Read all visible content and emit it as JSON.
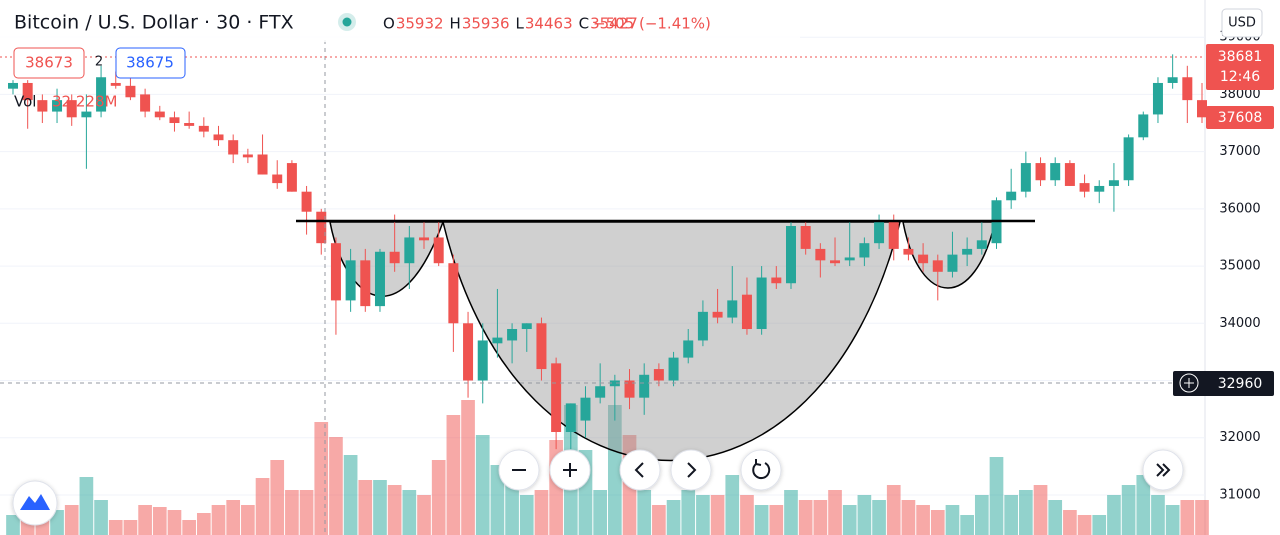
{
  "chart_data": {
    "type": "candlestick",
    "header": {
      "symbol": "Bitcoin / U.S. Dollar · 30 · FTX",
      "ohlc": [
        {
          "label": "O",
          "value": "35932"
        },
        {
          "label": "H",
          "value": "35936"
        },
        {
          "label": "L",
          "value": "34463"
        },
        {
          "label": "C",
          "value": "35427"
        }
      ],
      "change": "−505 (−1.41%)",
      "volume_label": "Vol",
      "volume_value": "32.228M"
    },
    "order_boxes": {
      "sell": "38673",
      "spread": "2",
      "buy": "38675"
    },
    "currency": "USD",
    "price_labels": {
      "last": "38681",
      "countdown": "12:46",
      "high": "37608",
      "crosshair": "32960"
    },
    "up_color": "#26a69a",
    "down_color": "#ef5350",
    "ylim": [
      30300,
      39650
    ],
    "yticks": [
      31000,
      32000,
      33000,
      34000,
      35000,
      36000,
      37000,
      38000,
      39000
    ],
    "open": [
      38100,
      38200,
      37900,
      37700,
      37900,
      37600,
      37700,
      38200,
      38150,
      38000,
      37700,
      37600,
      37500,
      37450,
      37300,
      37200,
      36950,
      36950,
      36600,
      36800,
      36300,
      35950,
      35400,
      34400,
      35100,
      34300,
      35250,
      35050,
      35500,
      35500,
      35050,
      34000,
      33000,
      33650,
      33700,
      33900,
      34000,
      33300,
      32100,
      32300,
      32700,
      32900,
      33000,
      32700,
      33200,
      33000,
      33400,
      33700,
      34200,
      34100,
      34500,
      33900,
      34800,
      34700,
      35700,
      35300,
      35100,
      35100,
      35150,
      35400,
      35800,
      35300,
      35200,
      35100,
      34900,
      35200,
      35300,
      35400,
      36150,
      36300,
      36800,
      36500,
      36800,
      36450,
      36300,
      36400,
      36500,
      37250,
      37650,
      38200,
      38300,
      37900
    ],
    "high": [
      38250,
      38250,
      38000,
      38100,
      38000,
      38000,
      38500,
      38400,
      38300,
      38100,
      37800,
      37700,
      37700,
      37600,
      37450,
      37300,
      37050,
      37300,
      36850,
      36850,
      36400,
      36000,
      35500,
      35300,
      35300,
      35300,
      35900,
      35700,
      35800,
      35800,
      35200,
      34200,
      34000,
      34600,
      34000,
      34000,
      34100,
      33400,
      32600,
      32900,
      33300,
      33100,
      33200,
      33300,
      33300,
      33500,
      33900,
      34400,
      34600,
      35000,
      34800,
      35000,
      35000,
      35800,
      35800,
      35400,
      35500,
      35800,
      35500,
      35900,
      35900,
      35500,
      35400,
      35200,
      35600,
      35500,
      35800,
      36200,
      36700,
      37000,
      36900,
      36900,
      36850,
      36600,
      36500,
      36800,
      37300,
      37700,
      38300,
      38700,
      38500,
      38200
    ],
    "low": [
      38000,
      37400,
      37500,
      37500,
      37450,
      36700,
      37600,
      38100,
      37900,
      37600,
      37550,
      37350,
      37400,
      37250,
      37100,
      36800,
      36800,
      36600,
      36350,
      36300,
      35550,
      35200,
      33800,
      34200,
      34200,
      34200,
      34900,
      34600,
      35300,
      35000,
      33500,
      32700,
      32600,
      33400,
      33300,
      33500,
      33000,
      31800,
      31800,
      32000,
      32600,
      32300,
      32500,
      32400,
      32900,
      32900,
      33300,
      33600,
      34000,
      34000,
      33800,
      33800,
      34600,
      34600,
      35200,
      34800,
      35000,
      35000,
      35000,
      35300,
      35100,
      35100,
      34900,
      34400,
      34800,
      35000,
      35200,
      35300,
      36000,
      36200,
      36400,
      36400,
      36400,
      36200,
      36100,
      35950,
      36400,
      37200,
      37500,
      38100,
      37500,
      37500
    ],
    "close": [
      38200,
      37900,
      37700,
      37900,
      37600,
      37700,
      38300,
      38150,
      37950,
      37700,
      37600,
      37500,
      37450,
      37350,
      37200,
      36950,
      36900,
      36600,
      36450,
      36300,
      35950,
      35400,
      34400,
      35100,
      34300,
      35250,
      35050,
      35500,
      35450,
      35050,
      34000,
      33000,
      33700,
      33750,
      33900,
      34000,
      33200,
      32100,
      32600,
      32700,
      32900,
      33000,
      32700,
      33100,
      33000,
      33400,
      33700,
      34200,
      34100,
      34400,
      33900,
      34800,
      34700,
      35700,
      35300,
      35100,
      35050,
      35150,
      35400,
      35800,
      35300,
      35200,
      35050,
      34900,
      35200,
      35300,
      35450,
      36150,
      36300,
      36800,
      36500,
      36800,
      36400,
      36300,
      36400,
      36500,
      37250,
      37650,
      38200,
      38300,
      37900,
      37600
    ],
    "volume": [
      20,
      15,
      30,
      25,
      30,
      58,
      35,
      15,
      15,
      30,
      28,
      25,
      15,
      22,
      30,
      35,
      30,
      57,
      75,
      45,
      45,
      113,
      98,
      80,
      55,
      55,
      50,
      45,
      40,
      75,
      120,
      135,
      100,
      70,
      50,
      40,
      45,
      95,
      130,
      85,
      45,
      130,
      100,
      45,
      30,
      35,
      45,
      40,
      40,
      60,
      40,
      30,
      30,
      45,
      35,
      35,
      45,
      30,
      40,
      35,
      50,
      35,
      30,
      25,
      30,
      20,
      40,
      78,
      40,
      45,
      50,
      35,
      25,
      20,
      20,
      40,
      50,
      60,
      40,
      30,
      35,
      35
    ]
  }
}
